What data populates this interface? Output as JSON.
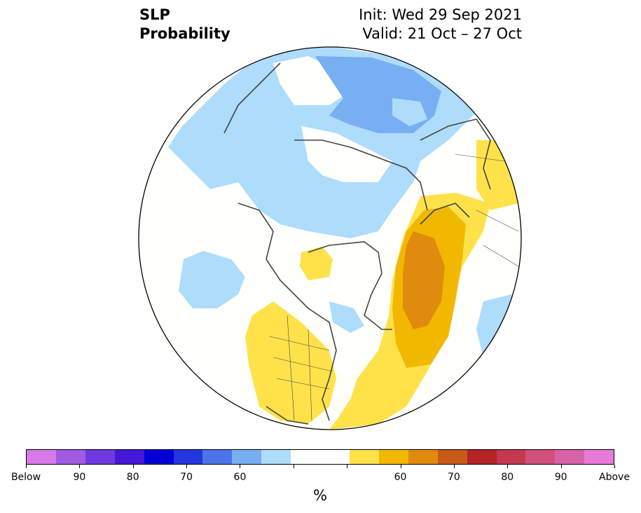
{
  "title": {
    "left_line1": "SLP",
    "left_line2": "Probability",
    "init": "Init: Wed 29 Sep 2021",
    "valid": "Valid: 21 Oct – 27 Oct"
  },
  "colorbar": {
    "colors": [
      "#d77ae8",
      "#a05ce0",
      "#6e3ae0",
      "#4418d6",
      "#0000d6",
      "#2436de",
      "#4c74e8",
      "#78aef2",
      "#aedcfb",
      "#ffffff",
      "#ffffff",
      "#ffe24a",
      "#f2b800",
      "#e08a0e",
      "#c85a18",
      "#b42424",
      "#c43850",
      "#d0507a",
      "#d862a8",
      "#e87ad8"
    ],
    "tick_labels": [
      "Below",
      "90",
      "80",
      "70",
      "60",
      "",
      "",
      "60",
      "70",
      "80",
      "90",
      "Above"
    ],
    "unit": "%"
  },
  "map": {
    "projection": "north-polar-stereographic",
    "variable": "sea level pressure tercile probability",
    "accent_colors": {
      "below_light": "#aedcfb",
      "below_mid": "#78aef2",
      "above_light": "#ffe24a",
      "above_mid": "#f2b800",
      "above_strong": "#e08a0e"
    }
  }
}
